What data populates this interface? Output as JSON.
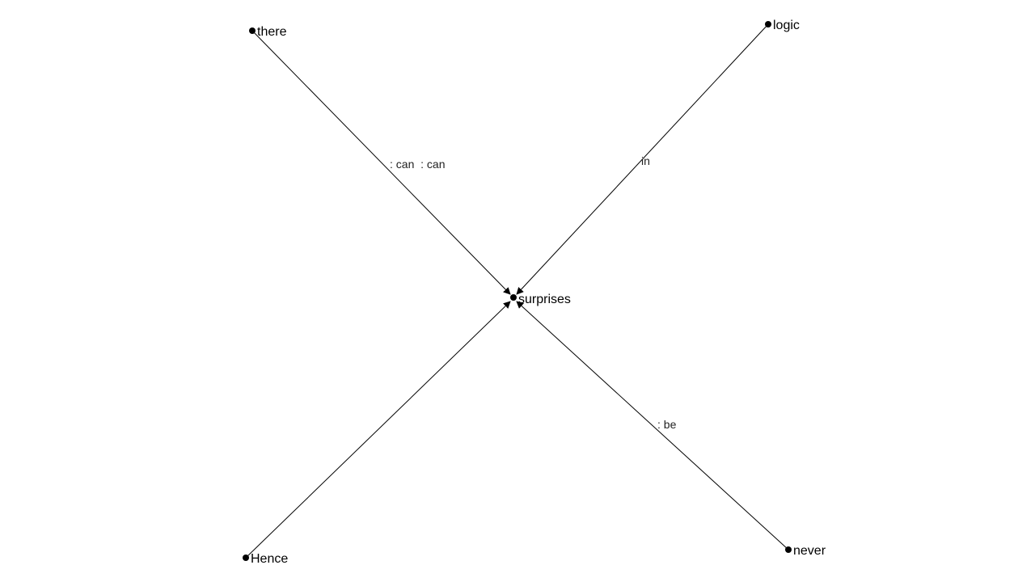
{
  "graph": {
    "nodes": [
      {
        "id": "there",
        "label": "there"
      },
      {
        "id": "logic",
        "label": "logic"
      },
      {
        "id": "surprises",
        "label": "surprises"
      },
      {
        "id": "Hence",
        "label": "Hence"
      },
      {
        "id": "never",
        "label": "never"
      }
    ],
    "edges": [
      {
        "id": "there-surprises",
        "from": "there",
        "to": "surprises",
        "label": ": can  : can"
      },
      {
        "id": "logic-surprises",
        "from": "logic",
        "to": "surprises",
        "label": "in"
      },
      {
        "id": "Hence-surprises",
        "from": "Hence",
        "to": "surprises",
        "label": ""
      },
      {
        "id": "never-surprises",
        "from": "never",
        "to": "surprises",
        "label": ": be"
      }
    ]
  },
  "colors": {
    "background": "#ffffff",
    "edge": "#000000",
    "node": "#000000"
  }
}
